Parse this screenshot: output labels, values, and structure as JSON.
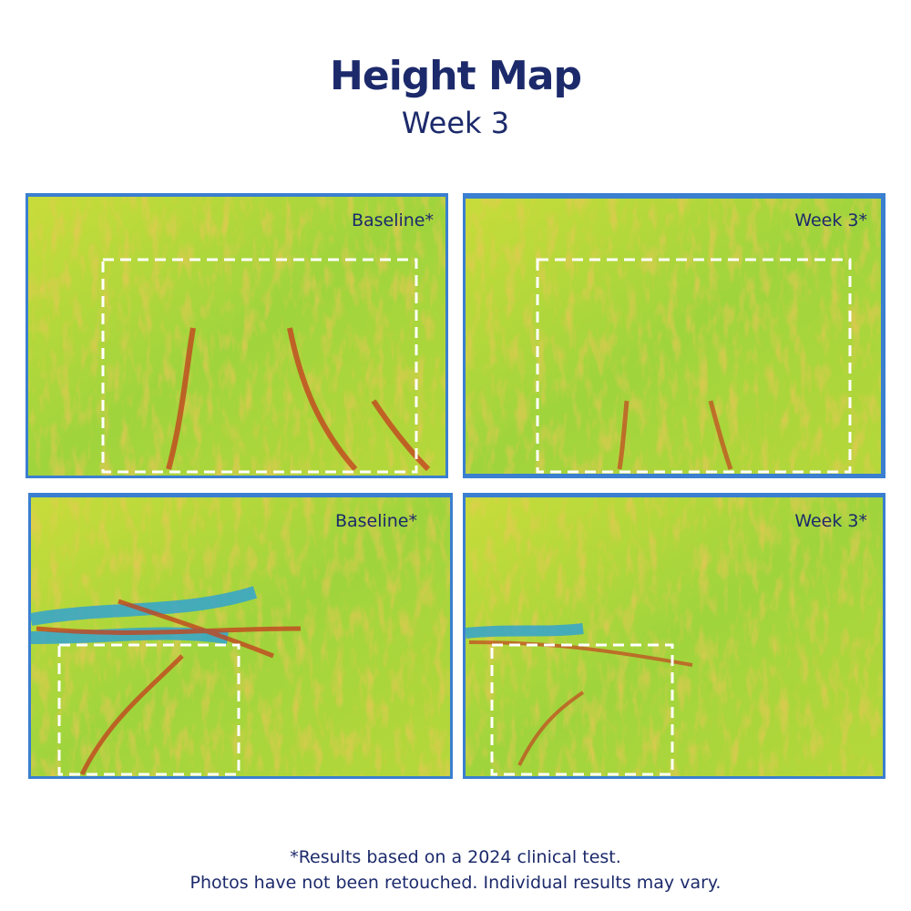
{
  "header": {
    "title": "Height Map",
    "subtitle": "Week 3"
  },
  "panels": [
    {
      "label": "Baseline*"
    },
    {
      "label": "Week 3*"
    },
    {
      "label": "Baseline*"
    },
    {
      "label": "Week 3*"
    }
  ],
  "footnote": {
    "lines": [
      "*Results based on a 2024 clinical test.",
      "Photos have not been retouched. Individual results may vary."
    ]
  }
}
